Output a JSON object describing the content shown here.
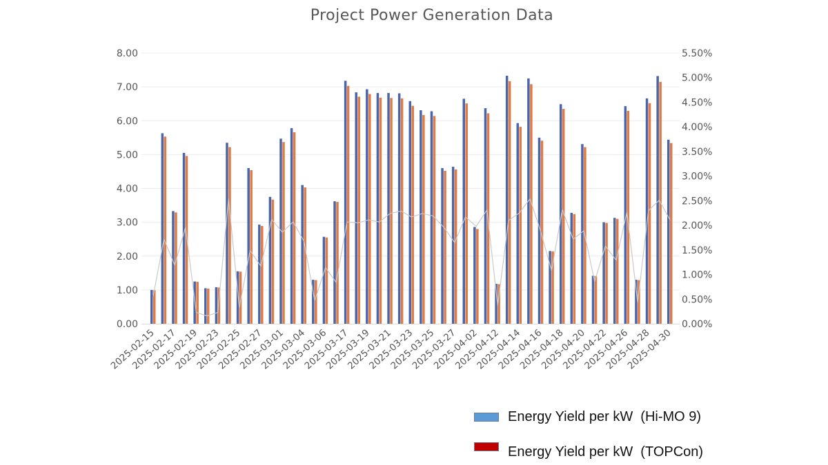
{
  "chart_data": {
    "type": "bar",
    "title": "Project Power Generation Data",
    "x_tick_labels": [
      "2025-02-15",
      "",
      "2025-02-17",
      "",
      "2025-02-19",
      "",
      "2025-02-23",
      "",
      "2025-02-25",
      "",
      "2025-02-27",
      "",
      "2025-03-01",
      "",
      "2025-03-04",
      "",
      "2025-03-06",
      "",
      "2025-03-17",
      "",
      "2025-03-19",
      "",
      "2025-03-21",
      "",
      "2025-03-23",
      "",
      "2025-03-25",
      "",
      "2025-03-27",
      "",
      "2025-04-02",
      "",
      "2025-04-12",
      "",
      "2025-04-14",
      "",
      "2025-04-16",
      "",
      "2025-04-18",
      "",
      "2025-04-20",
      "",
      "2025-04-22",
      "",
      "2025-04-26",
      "",
      "2025-04-28",
      "",
      "2025-04-30"
    ],
    "ylim": [
      0,
      8
    ],
    "y_ticks": [
      "0.00",
      "1.00",
      "2.00",
      "3.00",
      "4.00",
      "5.00",
      "6.00",
      "7.00",
      "8.00"
    ],
    "y2lim": [
      0,
      5.5
    ],
    "y2_ticks": [
      "0.00%",
      "0.50%",
      "1.00%",
      "1.50%",
      "2.00%",
      "2.50%",
      "3.00%",
      "3.50%",
      "4.00%",
      "4.50%",
      "5.00%",
      "5.50%"
    ],
    "grid": true,
    "legend_position": "bottom-right",
    "series": [
      {
        "name": "Energy Yield per kW  (Hi-MO 9)",
        "type": "bar",
        "axis": "left",
        "color": "#4a66a8",
        "legend_color": "#5b9bd5",
        "values": [
          1.0,
          5.63,
          3.33,
          5.05,
          1.25,
          1.05,
          1.08,
          5.35,
          1.55,
          4.6,
          2.93,
          3.75,
          5.47,
          5.78,
          4.1,
          1.3,
          2.57,
          3.62,
          7.18,
          6.84,
          6.93,
          6.82,
          6.82,
          6.81,
          6.58,
          6.31,
          6.28,
          4.6,
          4.64,
          6.65,
          2.86,
          6.37,
          1.18,
          7.33,
          5.93,
          7.25,
          5.5,
          2.15,
          6.49,
          3.28,
          5.31,
          1.42,
          3.0,
          3.13,
          6.43,
          1.3,
          6.66,
          7.32,
          5.44
        ]
      },
      {
        "name": "Energy Yield per kW  (TOPCon)",
        "type": "bar",
        "axis": "left",
        "color": "#e07b45",
        "legend_color": "#c00000",
        "values": [
          0.99,
          5.53,
          3.29,
          4.96,
          1.24,
          1.04,
          1.07,
          5.22,
          1.54,
          4.54,
          2.89,
          3.67,
          5.37,
          5.66,
          4.03,
          1.29,
          2.55,
          3.6,
          7.03,
          6.71,
          6.79,
          6.68,
          6.67,
          6.66,
          6.44,
          6.17,
          6.14,
          4.52,
          4.56,
          6.51,
          2.8,
          6.22,
          1.17,
          7.17,
          5.82,
          7.08,
          5.41,
          2.14,
          6.35,
          3.24,
          5.22,
          1.41,
          2.98,
          3.1,
          6.29,
          1.29,
          6.52,
          7.15,
          5.34
        ]
      },
      {
        "type": "line",
        "axis": "right",
        "color": "#c9c9c9",
        "values": [
          0.56,
          1.72,
          1.19,
          1.96,
          0.23,
          0.16,
          0.23,
          2.54,
          0.33,
          1.49,
          1.17,
          2.12,
          1.86,
          2.07,
          1.68,
          0.47,
          1.14,
          0.84,
          2.07,
          2.05,
          2.11,
          2.07,
          2.24,
          2.29,
          2.17,
          2.24,
          2.19,
          1.96,
          1.65,
          2.17,
          1.98,
          2.31,
          0.37,
          2.1,
          2.25,
          2.54,
          1.87,
          1.08,
          2.32,
          1.72,
          1.89,
          0.86,
          1.58,
          1.29,
          2.27,
          0.43,
          2.3,
          2.51,
          2.11
        ]
      }
    ]
  }
}
